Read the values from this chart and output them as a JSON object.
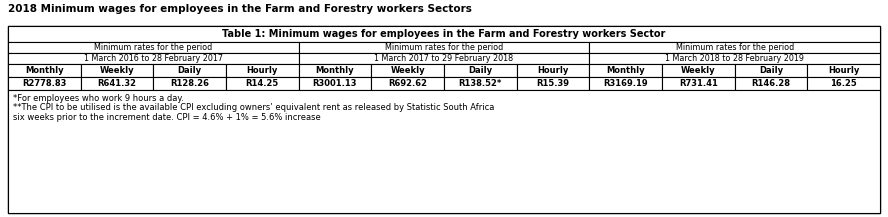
{
  "main_title": "2018 Minimum wages for employees in the Farm and Forestry workers Sectors",
  "table_title": "Table 1: Minimum wages for employees in the Farm and Forestry workers Sector",
  "period_label": "Minimum rates for the period",
  "period1_dates": "1 March 2016 to 28 February 2017",
  "period2_dates": "1 March 2017 to 29 February 2018",
  "period3_dates": "1 March 2018 to 28 February 2019",
  "col_headers": [
    "Monthly",
    "Weekly",
    "Daily",
    "Hourly",
    "Monthly",
    "Weekly",
    "Daily",
    "Hourly",
    "Monthly",
    "Weekly",
    "Daily",
    "Hourly"
  ],
  "row_values": [
    "R2778.83",
    "R641.32",
    "R128.26",
    "R14.25",
    "R3001.13",
    "R692.62",
    "R138.52*",
    "R15.39",
    "R3169.19",
    "R731.41",
    "R146.28",
    "16.25"
  ],
  "footnote1": "*For employees who work 9 hours a day.",
  "footnote2": "**The CPI to be utilised is the available CPI excluding owners’ equivalent rent as released by Statistic South Africa",
  "footnote3": "six weeks prior to the increment date. CPI = 4.6% + 1% = 5.6% increase",
  "bg_color": "#ffffff",
  "border_color": "#000000"
}
